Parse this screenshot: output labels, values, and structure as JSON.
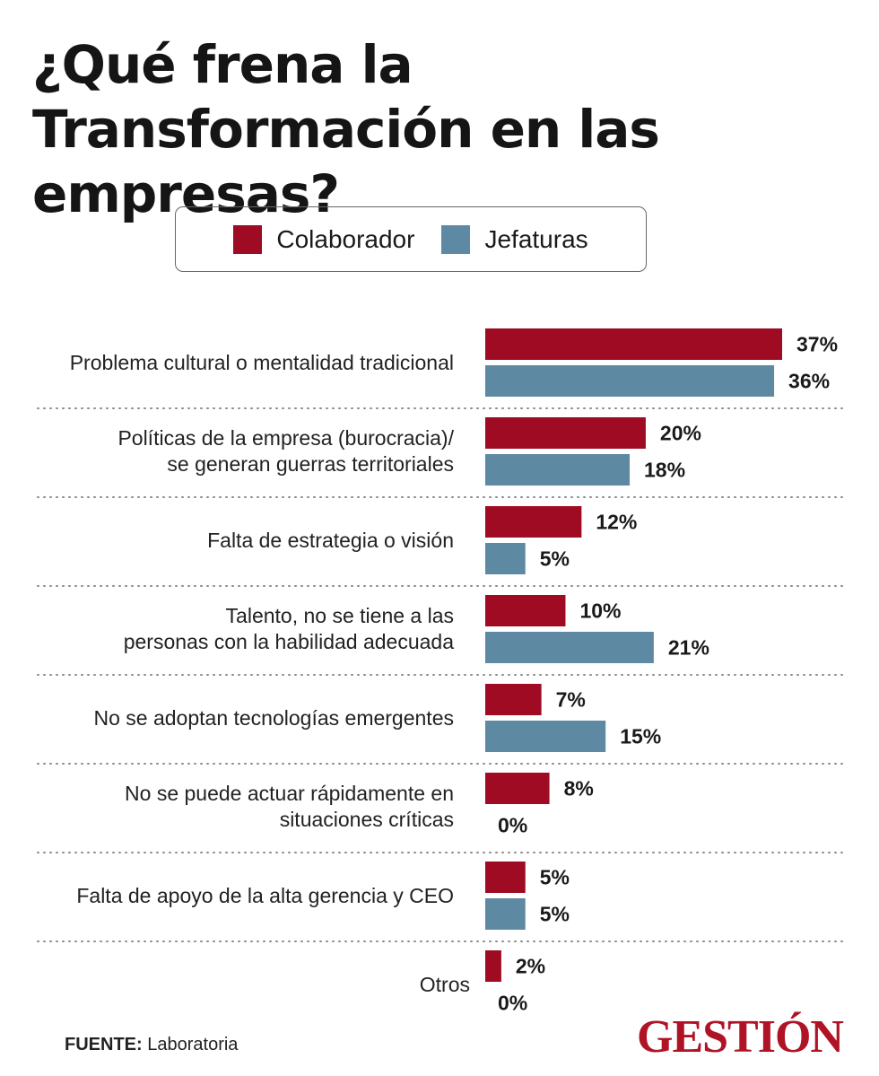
{
  "title": "¿Qué frena la Transformación en las empresas?",
  "legend": [
    {
      "label": "Colaborador",
      "color": "#9e0b22"
    },
    {
      "label": "Jefaturas",
      "color": "#5e89a2"
    }
  ],
  "chart_data": {
    "type": "bar",
    "orientation": "horizontal",
    "grouped": true,
    "categories": [
      [
        "Problema cultural o mentalidad tradicional"
      ],
      [
        "Políticas de la empresa (burocracia)/",
        "se generan guerras territoriales"
      ],
      [
        "Falta de estrategia o visión"
      ],
      [
        "Talento, no se tiene a las",
        "personas con la habilidad adecuada"
      ],
      [
        "No se adoptan tecnologías emergentes"
      ],
      [
        "No se puede actuar rápidamente en",
        "situaciones críticas"
      ],
      [
        "Falta de apoyo de la alta gerencia y CEO"
      ],
      [
        "Otros"
      ]
    ],
    "series": [
      {
        "name": "Colaborador",
        "color": "#9e0b22",
        "values": [
          37,
          20,
          12,
          10,
          7,
          8,
          5,
          2
        ],
        "labels": [
          "37%",
          "20%",
          "12%",
          "10%",
          "7%",
          "8%",
          "5%",
          "2%"
        ]
      },
      {
        "name": "Jefaturas",
        "color": "#5e89a2",
        "values": [
          36,
          18,
          5,
          21,
          15,
          0,
          5,
          0
        ],
        "labels": [
          "36%",
          "18%",
          "5%",
          "21%",
          "15%",
          "0%",
          "5%",
          "0%"
        ]
      }
    ],
    "value_unit": "%",
    "xlim": [
      0,
      37
    ],
    "grid": false,
    "separators": "dotted",
    "legend_position": "top-center"
  },
  "footer": {
    "source_label": "FUENTE:",
    "source_value": "Laboratoria"
  },
  "logo": "GESTIÓN"
}
